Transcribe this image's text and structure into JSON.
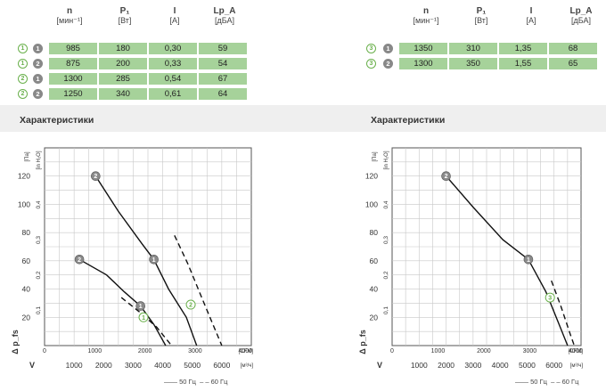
{
  "table_left": {
    "headers": [
      {
        "symbol": "n",
        "unit": "[мин⁻¹]"
      },
      {
        "symbol": "P₁",
        "unit": "[Вт]"
      },
      {
        "symbol": "I",
        "unit": "[А]"
      },
      {
        "symbol": "Lp_A",
        "unit": "[дБА]"
      }
    ],
    "rows": [
      {
        "curve": "1",
        "speed": "1",
        "cells": [
          "985",
          "180",
          "0,30",
          "59"
        ]
      },
      {
        "curve": "1",
        "speed": "2",
        "cells": [
          "875",
          "200",
          "0,33",
          "54"
        ]
      },
      {
        "curve": "2",
        "speed": "1",
        "cells": [
          "1300",
          "285",
          "0,54",
          "67"
        ]
      },
      {
        "curve": "2",
        "speed": "2",
        "cells": [
          "1250",
          "340",
          "0,61",
          "64"
        ]
      }
    ]
  },
  "table_right": {
    "headers": [
      {
        "symbol": "n",
        "unit": "[мин⁻¹]"
      },
      {
        "symbol": "P₁",
        "unit": "[Вт]"
      },
      {
        "symbol": "I",
        "unit": "[А]"
      },
      {
        "symbol": "Lp_A",
        "unit": "[дБА]"
      }
    ],
    "rows": [
      {
        "curve": "3",
        "speed": "1",
        "cells": [
          "1350",
          "310",
          "1,35",
          "68"
        ]
      },
      {
        "curve": "3",
        "speed": "2",
        "cells": [
          "1300",
          "350",
          "1,55",
          "65"
        ]
      }
    ]
  },
  "sections": {
    "left_title": "Характеристики",
    "right_title": "Характеристики"
  },
  "legend": {
    "solid": "50 Гц",
    "dashed": "60 Гц"
  },
  "colors": {
    "cell_green": "#a6d29a",
    "badge_green": "#6ab04c",
    "badge_grey": "#888888"
  },
  "chart_data": [
    {
      "type": "line",
      "title": "",
      "ylabel_pa": "[Па]",
      "ylabel_inh2o": "[in H₂O]",
      "xlabel_cfm": "[CFM]",
      "xlabel_m3h": "[м³/ч]",
      "y_axis_symbol": "Δ p_fs",
      "x_axis_symbol": "V",
      "ylim": [
        0,
        140
      ],
      "xlim_m3h": [
        0,
        7000
      ],
      "y_ticks_pa": [
        20,
        40,
        60,
        80,
        100,
        120
      ],
      "y_ticks_inh2o": [
        0.1,
        0.2,
        0.3,
        0.4
      ],
      "x_ticks_cfm": [
        0,
        1000,
        2000,
        3000,
        4000
      ],
      "x_ticks_m3h": [
        1000,
        2000,
        3000,
        4000,
        5000,
        6000
      ],
      "grid": true,
      "series": [
        {
          "style": "solid",
          "points": [
            [
              1730,
              120
            ],
            [
              2500,
              95
            ],
            [
              3300,
              72
            ],
            [
              3700,
              61
            ],
            [
              4200,
              40
            ],
            [
              4800,
              20
            ],
            [
              5150,
              0
            ]
          ]
        },
        {
          "style": "solid",
          "points": [
            [
              1180,
              61
            ],
            [
              2100,
              50
            ],
            [
              2700,
              38
            ],
            [
              3250,
              28
            ],
            [
              3700,
              15
            ],
            [
              4100,
              0
            ]
          ]
        },
        {
          "style": "dashed",
          "points": [
            [
              4400,
              78
            ],
            [
              4850,
              58
            ],
            [
              5300,
              35
            ],
            [
              5700,
              15
            ],
            [
              6000,
              0
            ]
          ]
        },
        {
          "style": "dashed",
          "points": [
            [
              2600,
              34
            ],
            [
              3200,
              24
            ],
            [
              3800,
              13
            ],
            [
              4300,
              0
            ]
          ]
        }
      ],
      "markers": [
        {
          "label": "2",
          "kind": "speed",
          "x": 1730,
          "y": 120
        },
        {
          "label": "1",
          "kind": "speed",
          "x": 3700,
          "y": 61
        },
        {
          "label": "2",
          "kind": "speed",
          "x": 1180,
          "y": 61
        },
        {
          "label": "1",
          "kind": "speed",
          "x": 3250,
          "y": 28
        },
        {
          "label": "2",
          "kind": "curve",
          "x": 4950,
          "y": 29
        },
        {
          "label": "1",
          "kind": "curve",
          "x": 3350,
          "y": 20
        }
      ]
    },
    {
      "type": "line",
      "title": "",
      "ylabel_pa": "[Па]",
      "ylabel_inh2o": "[in H₂O]",
      "xlabel_cfm": "[CFM]",
      "xlabel_m3h": "[м³/ч]",
      "y_axis_symbol": "Δ p_fs",
      "x_axis_symbol": "V",
      "ylim": [
        0,
        140
      ],
      "xlim_m3h": [
        0,
        7000
      ],
      "y_ticks_pa": [
        20,
        40,
        60,
        80,
        100,
        120
      ],
      "y_ticks_inh2o": [
        0.1,
        0.2,
        0.3,
        0.4
      ],
      "x_ticks_cfm": [
        0,
        1000,
        2000,
        3000,
        4000
      ],
      "x_ticks_m3h": [
        1000,
        2000,
        3000,
        4000,
        5000,
        6000
      ],
      "grid": true,
      "series": [
        {
          "style": "solid",
          "points": [
            [
              2000,
              120
            ],
            [
              3000,
              98
            ],
            [
              4100,
              75
            ],
            [
              5050,
              61
            ],
            [
              5700,
              38
            ],
            [
              6250,
              12
            ],
            [
              6500,
              0
            ]
          ]
        },
        {
          "style": "dashed",
          "points": [
            [
              5900,
              46
            ],
            [
              6250,
              28
            ],
            [
              6600,
              8
            ],
            [
              6750,
              0
            ]
          ]
        }
      ],
      "markers": [
        {
          "label": "2",
          "kind": "speed",
          "x": 2000,
          "y": 120
        },
        {
          "label": "1",
          "kind": "speed",
          "x": 5050,
          "y": 61
        },
        {
          "label": "3",
          "kind": "curve",
          "x": 5850,
          "y": 34
        }
      ]
    }
  ]
}
